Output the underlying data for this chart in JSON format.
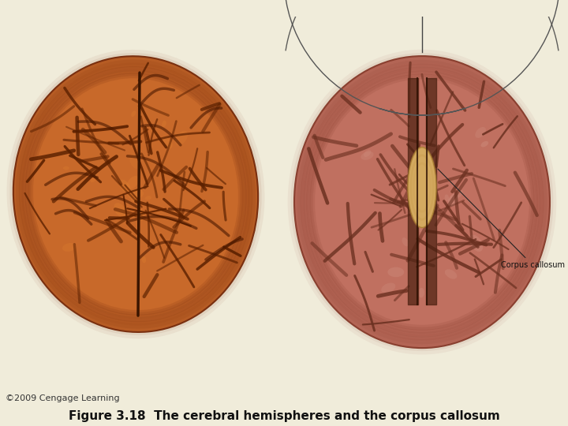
{
  "background_color": "#f0ecda",
  "title": "Figure 3.18  The cerebral hemispheres and the corpus callosum",
  "title_fontsize": 11,
  "copyright_text": "©2009 Cengage Learning",
  "copyright_fontsize": 8,
  "copyright_color": "#333333",
  "fig_width": 7.2,
  "fig_height": 5.4,
  "dpi": 100,
  "left_brain_color": "#c8692a",
  "left_brain_shadow": "#7a3010",
  "left_brain_highlight": "#e08030",
  "right_brain_color": "#c07060",
  "right_brain_shadow": "#8a4030",
  "right_brain_highlight": "#d8a090",
  "corpus_callosum_color": "#d4aa60",
  "sulci_color_left": "#5a2000",
  "sulci_color_right": "#6a3020",
  "label_fontsize": 7,
  "label_color": "#111111"
}
